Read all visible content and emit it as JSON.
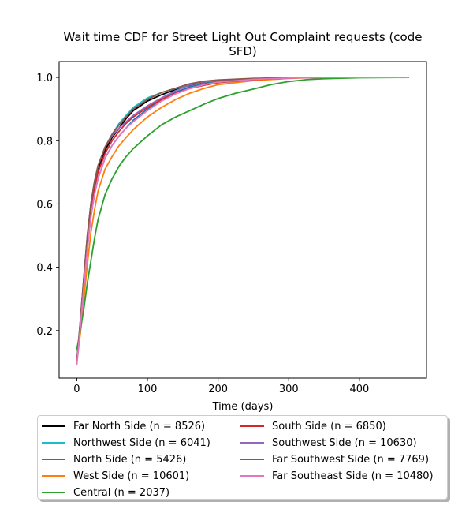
{
  "chart_data": {
    "type": "line",
    "title": "Wait time CDF for Street Light Out Complaint  requests (code SFD)",
    "title_lines": [
      "Wait time CDF for Street Light Out Complaint  requests (code",
      "SFD)"
    ],
    "xlabel": "Time (days)",
    "ylabel": "",
    "xlim": [
      -25,
      495
    ],
    "ylim": [
      0.05,
      1.05
    ],
    "xticks": [
      0,
      100,
      200,
      300,
      400
    ],
    "yticks": [
      0.2,
      0.4,
      0.6,
      0.8,
      1.0
    ],
    "ytick_labels": [
      "0.2",
      "0.4",
      "0.6",
      "0.8",
      "1.0"
    ],
    "grid": false,
    "legend_position": "bottom",
    "series": [
      {
        "name": "Far North Side (n = 8526)",
        "color": "#000000",
        "points": [
          [
            0,
            0.1
          ],
          [
            5,
            0.22
          ],
          [
            10,
            0.36
          ],
          [
            15,
            0.49
          ],
          [
            20,
            0.59
          ],
          [
            25,
            0.66
          ],
          [
            30,
            0.71
          ],
          [
            40,
            0.77
          ],
          [
            50,
            0.81
          ],
          [
            60,
            0.84
          ],
          [
            70,
            0.87
          ],
          [
            80,
            0.895
          ],
          [
            100,
            0.925
          ],
          [
            120,
            0.945
          ],
          [
            140,
            0.962
          ],
          [
            160,
            0.975
          ],
          [
            180,
            0.985
          ],
          [
            200,
            0.99
          ],
          [
            250,
            0.996
          ],
          [
            300,
            0.999
          ],
          [
            350,
            1.0
          ],
          [
            470,
            1.0
          ]
        ]
      },
      {
        "name": "Northwest Side (n = 6041)",
        "color": "#17becf",
        "points": [
          [
            0,
            0.1
          ],
          [
            5,
            0.23
          ],
          [
            10,
            0.37
          ],
          [
            15,
            0.5
          ],
          [
            20,
            0.6
          ],
          [
            25,
            0.67
          ],
          [
            30,
            0.72
          ],
          [
            40,
            0.78
          ],
          [
            50,
            0.82
          ],
          [
            60,
            0.855
          ],
          [
            70,
            0.88
          ],
          [
            80,
            0.905
          ],
          [
            100,
            0.935
          ],
          [
            120,
            0.952
          ],
          [
            140,
            0.965
          ],
          [
            160,
            0.977
          ],
          [
            180,
            0.986
          ],
          [
            200,
            0.99
          ],
          [
            250,
            0.996
          ],
          [
            300,
            0.999
          ],
          [
            350,
            1.0
          ],
          [
            470,
            1.0
          ]
        ]
      },
      {
        "name": "North Side (n = 5426)",
        "color": "#1f77b4",
        "points": [
          [
            0,
            0.1
          ],
          [
            5,
            0.21
          ],
          [
            10,
            0.34
          ],
          [
            15,
            0.46
          ],
          [
            20,
            0.56
          ],
          [
            25,
            0.63
          ],
          [
            30,
            0.68
          ],
          [
            40,
            0.745
          ],
          [
            50,
            0.785
          ],
          [
            60,
            0.815
          ],
          [
            70,
            0.84
          ],
          [
            80,
            0.865
          ],
          [
            100,
            0.9
          ],
          [
            120,
            0.93
          ],
          [
            140,
            0.953
          ],
          [
            160,
            0.97
          ],
          [
            180,
            0.98
          ],
          [
            200,
            0.987
          ],
          [
            250,
            0.995
          ],
          [
            300,
            0.999
          ],
          [
            350,
            1.0
          ],
          [
            470,
            1.0
          ]
        ]
      },
      {
        "name": "West Side (n = 10601)",
        "color": "#ff7f0e",
        "points": [
          [
            0,
            0.1
          ],
          [
            5,
            0.19
          ],
          [
            10,
            0.3
          ],
          [
            15,
            0.41
          ],
          [
            20,
            0.51
          ],
          [
            25,
            0.58
          ],
          [
            30,
            0.64
          ],
          [
            40,
            0.71
          ],
          [
            50,
            0.75
          ],
          [
            60,
            0.785
          ],
          [
            70,
            0.81
          ],
          [
            80,
            0.835
          ],
          [
            100,
            0.875
          ],
          [
            120,
            0.905
          ],
          [
            140,
            0.93
          ],
          [
            160,
            0.95
          ],
          [
            180,
            0.965
          ],
          [
            200,
            0.977
          ],
          [
            250,
            0.99
          ],
          [
            300,
            0.997
          ],
          [
            350,
            1.0
          ],
          [
            470,
            1.0
          ]
        ]
      },
      {
        "name": "Central (n = 2037)",
        "color": "#2ca02c",
        "points": [
          [
            0,
            0.14
          ],
          [
            5,
            0.2
          ],
          [
            10,
            0.27
          ],
          [
            15,
            0.35
          ],
          [
            20,
            0.42
          ],
          [
            25,
            0.49
          ],
          [
            30,
            0.55
          ],
          [
            40,
            0.63
          ],
          [
            50,
            0.68
          ],
          [
            60,
            0.72
          ],
          [
            70,
            0.75
          ],
          [
            80,
            0.775
          ],
          [
            100,
            0.815
          ],
          [
            120,
            0.85
          ],
          [
            140,
            0.875
          ],
          [
            160,
            0.895
          ],
          [
            180,
            0.915
          ],
          [
            200,
            0.933
          ],
          [
            225,
            0.95
          ],
          [
            250,
            0.963
          ],
          [
            275,
            0.977
          ],
          [
            300,
            0.987
          ],
          [
            325,
            0.993
          ],
          [
            350,
            0.996
          ],
          [
            400,
            0.999
          ],
          [
            470,
            1.0
          ]
        ]
      },
      {
        "name": "South Side (n = 6850)",
        "color": "#d62728",
        "points": [
          [
            0,
            0.1
          ],
          [
            5,
            0.22
          ],
          [
            10,
            0.35
          ],
          [
            15,
            0.48
          ],
          [
            20,
            0.58
          ],
          [
            25,
            0.65
          ],
          [
            30,
            0.7
          ],
          [
            40,
            0.76
          ],
          [
            50,
            0.8
          ],
          [
            60,
            0.83
          ],
          [
            70,
            0.855
          ],
          [
            80,
            0.875
          ],
          [
            100,
            0.905
          ],
          [
            120,
            0.93
          ],
          [
            140,
            0.95
          ],
          [
            160,
            0.965
          ],
          [
            180,
            0.975
          ],
          [
            200,
            0.983
          ],
          [
            250,
            0.993
          ],
          [
            300,
            0.998
          ],
          [
            350,
            1.0
          ],
          [
            470,
            1.0
          ]
        ]
      },
      {
        "name": "Southwest Side (n = 10630)",
        "color": "#9467bd",
        "points": [
          [
            0,
            0.1
          ],
          [
            5,
            0.23
          ],
          [
            10,
            0.37
          ],
          [
            15,
            0.5
          ],
          [
            20,
            0.6
          ],
          [
            25,
            0.67
          ],
          [
            30,
            0.72
          ],
          [
            40,
            0.78
          ],
          [
            50,
            0.815
          ],
          [
            60,
            0.84
          ],
          [
            70,
            0.86
          ],
          [
            80,
            0.88
          ],
          [
            100,
            0.91
          ],
          [
            120,
            0.935
          ],
          [
            140,
            0.958
          ],
          [
            160,
            0.976
          ],
          [
            180,
            0.986
          ],
          [
            200,
            0.99
          ],
          [
            250,
            0.996
          ],
          [
            300,
            0.999
          ],
          [
            350,
            1.0
          ],
          [
            470,
            1.0
          ]
        ]
      },
      {
        "name": "Far Southwest Side (n = 7769)",
        "color": "#8c564b",
        "points": [
          [
            0,
            0.1
          ],
          [
            5,
            0.23
          ],
          [
            10,
            0.37
          ],
          [
            15,
            0.5
          ],
          [
            20,
            0.6
          ],
          [
            25,
            0.67
          ],
          [
            30,
            0.72
          ],
          [
            40,
            0.78
          ],
          [
            50,
            0.82
          ],
          [
            60,
            0.85
          ],
          [
            70,
            0.875
          ],
          [
            80,
            0.9
          ],
          [
            100,
            0.93
          ],
          [
            120,
            0.952
          ],
          [
            140,
            0.966
          ],
          [
            160,
            0.98
          ],
          [
            180,
            0.988
          ],
          [
            200,
            0.992
          ],
          [
            250,
            0.997
          ],
          [
            300,
            0.999
          ],
          [
            350,
            1.0
          ],
          [
            470,
            1.0
          ]
        ]
      },
      {
        "name": "Far Southeast Side (n = 10480)",
        "color": "#e377c2",
        "points": [
          [
            0,
            0.09
          ],
          [
            5,
            0.21
          ],
          [
            10,
            0.34
          ],
          [
            15,
            0.46
          ],
          [
            20,
            0.56
          ],
          [
            25,
            0.63
          ],
          [
            30,
            0.68
          ],
          [
            40,
            0.745
          ],
          [
            50,
            0.785
          ],
          [
            60,
            0.815
          ],
          [
            70,
            0.84
          ],
          [
            80,
            0.86
          ],
          [
            100,
            0.895
          ],
          [
            120,
            0.925
          ],
          [
            140,
            0.948
          ],
          [
            160,
            0.965
          ],
          [
            180,
            0.977
          ],
          [
            200,
            0.985
          ],
          [
            250,
            0.994
          ],
          [
            300,
            0.998
          ],
          [
            350,
            1.0
          ],
          [
            470,
            1.0
          ]
        ]
      }
    ]
  }
}
